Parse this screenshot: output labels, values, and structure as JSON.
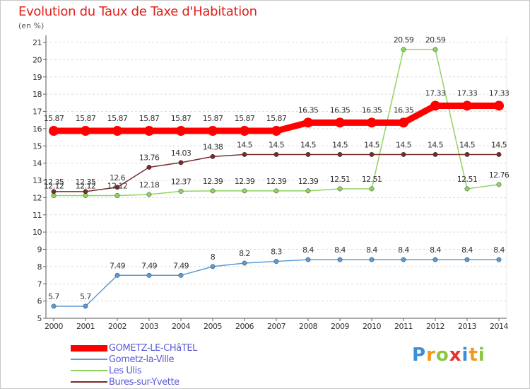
{
  "header": {
    "title": "Evolution du Taux de Taxe d'Habitation",
    "unit": "(en %)"
  },
  "logo": {
    "letters": [
      "P",
      "r",
      "o",
      "x",
      "i",
      "t",
      "i"
    ],
    "colors": [
      "#3a8fd6",
      "#f39a1e",
      "#8cc63f",
      "#e5322c",
      "#3a8fd6",
      "#f39a1e",
      "#8cc63f"
    ]
  },
  "chart_data": {
    "type": "line",
    "x": [
      2000,
      2001,
      2002,
      2003,
      2004,
      2005,
      2006,
      2007,
      2008,
      2009,
      2010,
      2011,
      2012,
      2013,
      2014
    ],
    "ylim": [
      5,
      21
    ],
    "yticks": [
      5,
      6,
      7,
      8,
      9,
      10,
      11,
      12,
      13,
      14,
      15,
      16,
      17,
      18,
      19,
      20,
      21
    ],
    "grid": "horizontal-dashed",
    "legend": "bottom-left",
    "series": [
      {
        "name": "GOMETZ-LE-CHâTEL",
        "color": "#ff0000",
        "values": [
          15.87,
          15.87,
          15.87,
          15.87,
          15.87,
          15.87,
          15.87,
          15.87,
          16.35,
          16.35,
          16.35,
          16.35,
          17.33,
          17.33,
          17.33
        ],
        "labels": [
          "15.87",
          "15.87",
          "15.87",
          "15.87",
          "15.87",
          "15.87",
          "15.87",
          "15.87",
          "16.35",
          "16.35",
          "16.35",
          "16.35",
          "17.33",
          "17.33",
          "17.33"
        ]
      },
      {
        "name": "Gometz-la-Ville",
        "color": "#5b9bd5",
        "values": [
          5.7,
          5.7,
          7.49,
          7.49,
          7.49,
          8,
          8.2,
          8.3,
          8.4,
          8.4,
          8.4,
          8.4,
          8.4,
          8.4,
          8.4
        ],
        "labels": [
          "5.7",
          "5.7",
          "7.49",
          "7.49",
          "7.49",
          "8",
          "8.2",
          "8.3",
          "8.4",
          "8.4",
          "8.4",
          "8.4",
          "8.4",
          "8.4",
          "8.4"
        ]
      },
      {
        "name": "Les Ulis",
        "color": "#8fd460",
        "values": [
          12.12,
          12.12,
          12.12,
          12.18,
          12.37,
          12.39,
          12.39,
          12.39,
          12.39,
          12.51,
          12.51,
          20.59,
          20.59,
          12.51,
          12.76
        ],
        "labels": [
          "12.12",
          "12.12",
          "12.12",
          "12.18",
          "12.37",
          "12.39",
          "12.39",
          "12.39",
          "12.39",
          "12.51",
          "12.51",
          "20.59",
          "20.59",
          "12.51",
          "12.76"
        ]
      },
      {
        "name": "Bures-sur-Yvette",
        "color": "#7a2a2a",
        "values": [
          12.35,
          12.35,
          12.6,
          13.76,
          14.03,
          14.38,
          14.5,
          14.5,
          14.5,
          14.5,
          14.5,
          14.5,
          14.5,
          14.5,
          14.5
        ],
        "labels": [
          "12.35",
          "12.35",
          "12.6",
          "13.76",
          "14.03",
          "14.38",
          "14.5",
          "14.5",
          "14.5",
          "14.5",
          "14.5",
          "14.5",
          "14.5",
          "14.5",
          "14.5"
        ]
      }
    ]
  }
}
